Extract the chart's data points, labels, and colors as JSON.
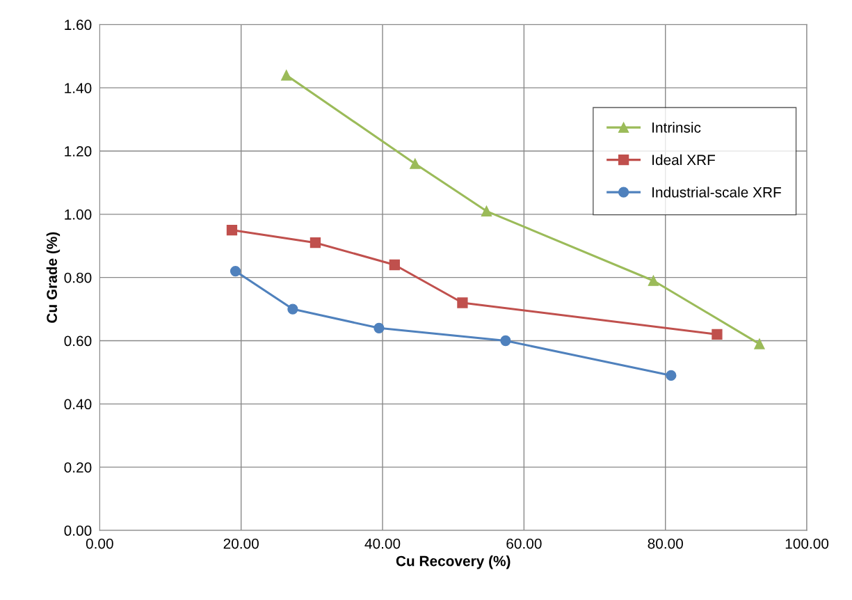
{
  "chart_data": {
    "type": "line",
    "xlabel": "Cu Recovery (%)",
    "ylabel": "Cu Grade (%)",
    "xlim": [
      0,
      100
    ],
    "ylim": [
      0,
      1.6
    ],
    "xticks": [
      {
        "value": 0,
        "label": "0.00"
      },
      {
        "value": 20,
        "label": "20.00"
      },
      {
        "value": 40,
        "label": "40.00"
      },
      {
        "value": 60,
        "label": "60.00"
      },
      {
        "value": 80,
        "label": "80.00"
      },
      {
        "value": 100,
        "label": "100.00"
      }
    ],
    "yticks": [
      {
        "value": 0,
        "label": "0.00"
      },
      {
        "value": 0.2,
        "label": "0.20"
      },
      {
        "value": 0.4,
        "label": "0.40"
      },
      {
        "value": 0.6,
        "label": "0.60"
      },
      {
        "value": 0.8,
        "label": "0.80"
      },
      {
        "value": 1.0,
        "label": "1.00"
      },
      {
        "value": 1.2,
        "label": "1.20"
      },
      {
        "value": 1.4,
        "label": "1.40"
      },
      {
        "value": 1.6,
        "label": "1.60"
      }
    ],
    "grid": true,
    "legend": "right",
    "line_style": "solid",
    "series": [
      {
        "name": "Intrinsic",
        "color": "#9bbb59",
        "marker": "triangle",
        "x": [
          26.4,
          44.6,
          54.7,
          78.3,
          93.3
        ],
        "values": [
          1.44,
          1.16,
          1.01,
          0.79,
          0.59
        ]
      },
      {
        "name": "Ideal XRF",
        "color": "#c0504d",
        "marker": "square",
        "x": [
          18.7,
          30.5,
          41.7,
          51.3,
          87.3
        ],
        "values": [
          0.95,
          0.91,
          0.84,
          0.72,
          0.62
        ]
      },
      {
        "name": "Industrial-scale XRF",
        "color": "#4f81bd",
        "marker": "circle",
        "x": [
          19.2,
          27.3,
          39.5,
          57.4,
          80.8
        ],
        "values": [
          0.82,
          0.7,
          0.64,
          0.6,
          0.49
        ]
      }
    ]
  }
}
